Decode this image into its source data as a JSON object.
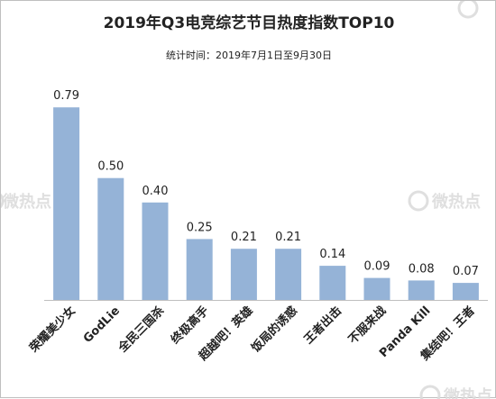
{
  "chart_data": {
    "type": "bar",
    "title": "2019年Q3电竞综艺节目热度指数TOP10",
    "subtitle": "统计时间：2019年7月1日至9月30日",
    "categories": [
      "荣耀美少女",
      "GodLie",
      "全民三国杀",
      "终极高手",
      "超越吧！英雄",
      "饭局的诱惑",
      "王者出击",
      "不服来战",
      "Panda Kill",
      "集结吧！王者"
    ],
    "value_labels": [
      "0.79",
      "0.50",
      "0.40",
      "0.25",
      "0.21",
      "0.21",
      "0.14",
      "0.09",
      "0.08",
      "0.07"
    ],
    "values": [
      0.79,
      0.5,
      0.4,
      0.25,
      0.21,
      0.21,
      0.14,
      0.09,
      0.08,
      0.07
    ],
    "ylim": [
      0,
      0.85
    ],
    "grid": false,
    "legend": "none",
    "bar_color": "#95b3d7",
    "axis_color": "#bfbfbf"
  },
  "watermark": {
    "text": "微热点"
  }
}
